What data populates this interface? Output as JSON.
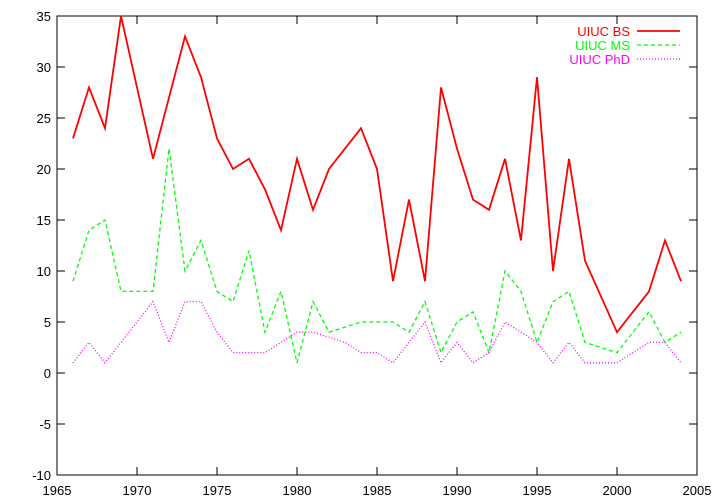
{
  "chart_data": {
    "type": "line",
    "title": "",
    "xlabel": "",
    "ylabel": "",
    "xlim": [
      1965,
      2005
    ],
    "ylim": [
      -10,
      35
    ],
    "xticks": [
      1965,
      1970,
      1975,
      1980,
      1985,
      1990,
      1995,
      2000,
      2005
    ],
    "yticks": [
      -10,
      -5,
      0,
      5,
      10,
      15,
      20,
      25,
      30,
      35
    ],
    "grid": false,
    "legend_position": "top-right",
    "series": [
      {
        "name": "UIUC BS",
        "color": "#ff0000",
        "dash": "solid",
        "x": [
          1966,
          1967,
          1968,
          1969,
          1970,
          1971,
          1972,
          1973,
          1974,
          1975,
          1976,
          1977,
          1978,
          1979,
          1980,
          1981,
          1982,
          1983,
          1984,
          1985,
          1986,
          1987,
          1988,
          1989,
          1990,
          1991,
          1992,
          1993,
          1994,
          1995,
          1996,
          1997,
          1998,
          2000,
          2002,
          2003,
          2004
        ],
        "y": [
          23,
          28,
          24,
          35,
          28,
          21,
          27,
          33,
          29,
          23,
          20,
          21,
          18,
          14,
          21,
          16,
          20,
          22,
          24,
          20,
          9,
          17,
          9,
          28,
          22,
          17,
          16,
          21,
          13,
          29,
          10,
          21,
          11,
          4,
          8,
          13,
          9
        ]
      },
      {
        "name": "UIUC MS",
        "color": "#00ff00",
        "dash": "dashed",
        "x": [
          1966,
          1967,
          1968,
          1969,
          1970,
          1971,
          1972,
          1973,
          1974,
          1975,
          1976,
          1977,
          1978,
          1979,
          1980,
          1981,
          1982,
          1983,
          1984,
          1985,
          1986,
          1987,
          1988,
          1989,
          1990,
          1991,
          1992,
          1993,
          1994,
          1995,
          1996,
          1997,
          1998,
          2000,
          2002,
          2003,
          2004
        ],
        "y": [
          9,
          14,
          15,
          8,
          8,
          8,
          22,
          10,
          13,
          8,
          7,
          12,
          4,
          8,
          1,
          7,
          4,
          4.5,
          5,
          5,
          5,
          4,
          7,
          2,
          5,
          6,
          2,
          10,
          8,
          3,
          7,
          8,
          3,
          2,
          6,
          3,
          4
        ]
      },
      {
        "name": "UIUC PhD",
        "color": "#ff00ff",
        "dash": "dotted",
        "x": [
          1966,
          1967,
          1968,
          1969,
          1970,
          1971,
          1972,
          1973,
          1974,
          1975,
          1976,
          1977,
          1978,
          1979,
          1980,
          1981,
          1982,
          1983,
          1984,
          1985,
          1986,
          1987,
          1988,
          1989,
          1990,
          1991,
          1992,
          1993,
          1994,
          1995,
          1996,
          1997,
          1998,
          2000,
          2002,
          2003,
          2004
        ],
        "y": [
          1,
          3,
          1,
          3,
          5,
          7,
          3,
          7,
          7,
          4,
          2,
          2,
          2,
          3,
          4,
          4,
          3.5,
          3,
          2,
          2,
          1,
          3,
          5,
          1,
          3,
          1,
          2,
          5,
          4,
          3,
          1,
          3,
          1,
          1,
          3,
          3,
          1
        ]
      }
    ]
  }
}
